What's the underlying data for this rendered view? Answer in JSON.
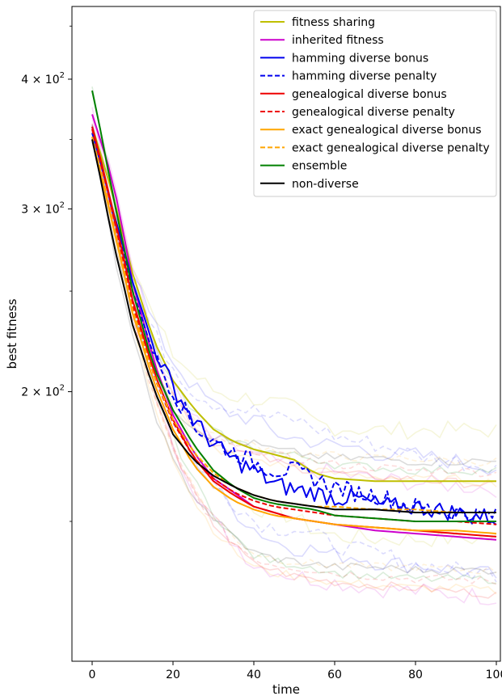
{
  "chart_data": {
    "type": "line",
    "xlabel": "time",
    "ylabel": "best fitness",
    "xlim": [
      -5,
      101
    ],
    "ylim": [
      110,
      470
    ],
    "yscale": "log",
    "xticks": [
      0,
      20,
      40,
      60,
      80,
      100
    ],
    "xtick_labels": [
      "0",
      "20",
      "40",
      "60",
      "80",
      "100"
    ],
    "yticks": [
      {
        "value": 200,
        "base": "2",
        "exp": "2"
      },
      {
        "value": 300,
        "base": "3",
        "exp": "2"
      },
      {
        "value": 400,
        "base": "4",
        "exp": "2"
      }
    ],
    "legend_location": "top-right",
    "grid": false,
    "series": [
      {
        "name": "fitness sharing",
        "color": "#bfbf00",
        "dash": "solid",
        "x": [
          0,
          5,
          10,
          15,
          20,
          25,
          30,
          35,
          40,
          45,
          50,
          55,
          60,
          70,
          80,
          90,
          100
        ],
        "values": [
          360,
          310,
          260,
          225,
          205,
          193,
          184,
          179,
          176,
          174,
          172,
          167,
          165,
          164,
          164,
          164,
          164
        ]
      },
      {
        "name": "inherited fitness",
        "color": "#cc00cc",
        "dash": "solid",
        "x": [
          0,
          5,
          10,
          15,
          20,
          25,
          30,
          35,
          40,
          45,
          50,
          55,
          60,
          70,
          80,
          90,
          100
        ],
        "values": [
          370,
          320,
          255,
          215,
          190,
          175,
          165,
          160,
          155,
          153,
          151,
          150,
          149,
          147,
          146,
          145,
          144
        ]
      },
      {
        "name": "hamming diverse bonus",
        "color": "#0000ee",
        "dash": "solid",
        "x": [
          0,
          5,
          10,
          15,
          20,
          25,
          30,
          35,
          40,
          45,
          50,
          55,
          60,
          65,
          70,
          75,
          80,
          85,
          90,
          95,
          100
        ],
        "values": [
          355,
          300,
          255,
          222,
          202,
          188,
          178,
          172,
          168,
          163,
          161,
          160,
          158,
          158,
          156,
          155,
          155,
          154,
          153,
          152,
          151
        ]
      },
      {
        "name": "hamming diverse penalty",
        "color": "#0000ee",
        "dash": "dashed",
        "x": [
          0,
          5,
          10,
          15,
          20,
          25,
          30,
          35,
          40,
          45,
          50,
          55,
          60,
          65,
          70,
          75,
          80,
          85,
          90,
          95,
          100
        ],
        "values": [
          360,
          298,
          250,
          218,
          200,
          186,
          179,
          175,
          171,
          168,
          168,
          165,
          162,
          160,
          159,
          157,
          155,
          154,
          153,
          152,
          152
        ]
      },
      {
        "name": "genealogical diverse bonus",
        "color": "#ee0000",
        "dash": "solid",
        "x": [
          0,
          5,
          10,
          15,
          20,
          25,
          30,
          35,
          40,
          45,
          50,
          55,
          60,
          70,
          80,
          90,
          100
        ],
        "values": [
          360,
          300,
          245,
          210,
          188,
          173,
          164,
          159,
          155,
          153,
          151,
          150,
          149,
          148,
          147,
          146,
          145
        ]
      },
      {
        "name": "genealogical diverse penalty",
        "color": "#ee0000",
        "dash": "dashed",
        "x": [
          0,
          5,
          10,
          15,
          20,
          25,
          30,
          35,
          40,
          45,
          50,
          55,
          60,
          70,
          80,
          90,
          100
        ],
        "values": [
          358,
          298,
          242,
          208,
          187,
          173,
          165,
          160,
          157,
          155,
          154,
          153,
          152,
          151,
          150,
          150,
          149
        ]
      },
      {
        "name": "exact genealogical diverse bonus",
        "color": "#ffa500",
        "dash": "solid",
        "x": [
          0,
          5,
          10,
          15,
          20,
          25,
          30,
          35,
          40,
          45,
          50,
          55,
          60,
          70,
          80,
          90,
          100
        ],
        "values": [
          350,
          290,
          238,
          205,
          184,
          170,
          162,
          157,
          154,
          152,
          151,
          150,
          149,
          148,
          147,
          147,
          146
        ]
      },
      {
        "name": "exact genealogical diverse penalty",
        "color": "#ffa500",
        "dash": "dashed",
        "x": [
          0,
          5,
          10,
          15,
          20,
          25,
          30,
          35,
          40,
          45,
          50,
          55,
          60,
          70,
          80,
          90,
          100
        ],
        "values": [
          352,
          292,
          240,
          208,
          188,
          175,
          167,
          162,
          159,
          157,
          156,
          155,
          155,
          154,
          154,
          153,
          153
        ]
      },
      {
        "name": "ensemble",
        "color": "#008000",
        "dash": "solid",
        "x": [
          0,
          5,
          10,
          15,
          20,
          25,
          30,
          35,
          40,
          45,
          50,
          55,
          60,
          70,
          80,
          90,
          100
        ],
        "values": [
          390,
          310,
          250,
          212,
          192,
          178,
          168,
          162,
          158,
          156,
          155,
          154,
          152,
          151,
          150,
          150,
          150
        ]
      },
      {
        "name": "non-diverse",
        "color": "#000000",
        "dash": "solid",
        "x": [
          0,
          5,
          10,
          15,
          20,
          25,
          30,
          35,
          40,
          45,
          50,
          55,
          60,
          70,
          80,
          90,
          100
        ],
        "values": [
          350,
          280,
          232,
          202,
          182,
          172,
          166,
          162,
          159,
          157,
          156,
          155,
          154,
          154,
          153,
          153,
          153
        ]
      }
    ]
  }
}
